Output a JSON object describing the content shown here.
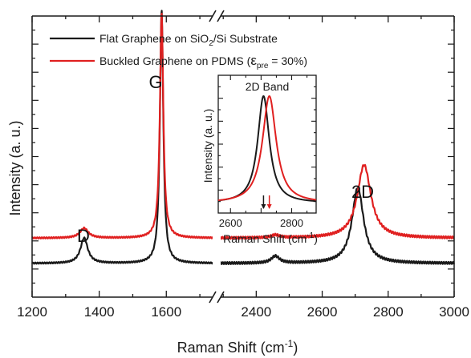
{
  "chart_data": {
    "type": "line",
    "xlabel": "Raman Shift (cm",
    "xlabel_sup": "-1",
    "xlabel_close": ")",
    "ylabel": "Intensity (a. u.)",
    "axis_break": true,
    "x_segments": [
      [
        1200,
        1750
      ],
      [
        2280,
        3000
      ]
    ],
    "x_ticks": [
      1200,
      1400,
      1600,
      2400,
      2600,
      2800,
      3000
    ],
    "y_ticks_shown": false,
    "legend": {
      "position": "top-left",
      "entries": [
        {
          "name_parts": [
            "Flat Graphene on SiO",
            "2",
            "/Si Substrate"
          ],
          "color": "#1a1a1a"
        },
        {
          "name_parts": [
            "Buckled Graphene on PDMS (",
            "ε",
            "pre",
            " = 30%)"
          ],
          "color": "#e02020"
        }
      ]
    },
    "annotations": [
      "D",
      "G",
      "2D"
    ],
    "series": [
      {
        "color": "#1a1a1a",
        "baseline": 0.12,
        "peaks": [
          {
            "center": 1355,
            "height": 0.09,
            "width": 26
          },
          {
            "center": 1586,
            "height": 0.9,
            "width": 12
          },
          {
            "center": 2458,
            "height": 0.025,
            "width": 30
          },
          {
            "center": 2708,
            "height": 0.27,
            "width": 42
          }
        ]
      },
      {
        "color": "#e02020",
        "baseline": 0.21,
        "peaks": [
          {
            "center": 1355,
            "height": 0.035,
            "width": 30
          },
          {
            "center": 1586,
            "height": 0.8,
            "width": 12
          },
          {
            "center": 2458,
            "height": 0.01,
            "width": 30
          },
          {
            "center": 2727,
            "height": 0.26,
            "width": 50
          }
        ]
      }
    ],
    "inset": {
      "title": "2D Band",
      "xlabel": "Raman Shift (cm",
      "xlabel_sup": "-1",
      "xlabel_close": ")",
      "ylabel": "Intensity (a. u.)",
      "xlim": [
        2560,
        2880
      ],
      "x_ticks": [
        2600,
        2700,
        2800
      ],
      "x_tick_labels": [
        "2600",
        "",
        "2800"
      ],
      "series": [
        {
          "color": "#1a1a1a",
          "center": 2708,
          "width": 46
        },
        {
          "color": "#e02020",
          "center": 2727,
          "width": 54
        }
      ],
      "markers": [
        {
          "x": 2708,
          "color": "#1a1a1a"
        },
        {
          "x": 2727,
          "color": "#e02020"
        }
      ]
    }
  }
}
